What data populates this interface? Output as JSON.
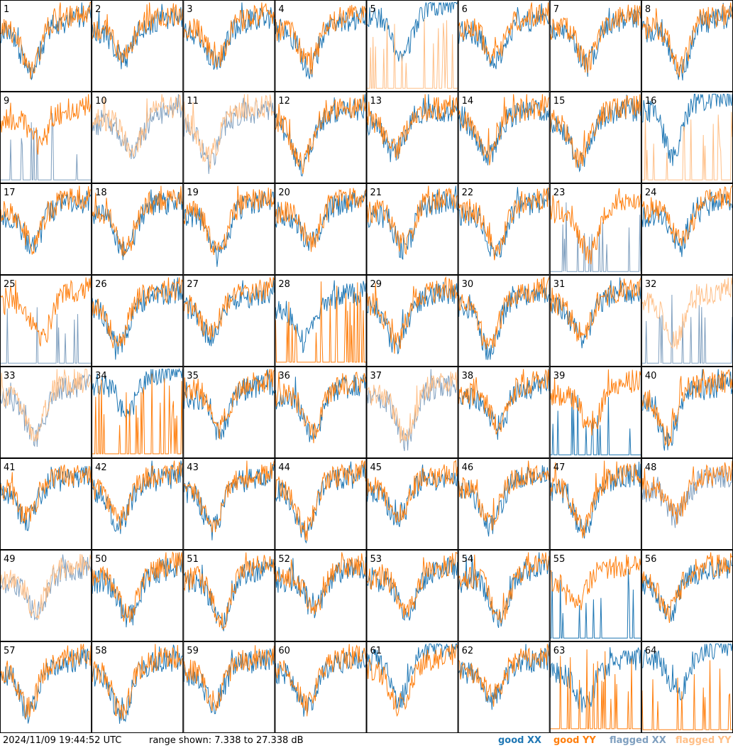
{
  "chart_data": {
    "type": "line",
    "description_grid": {
      "rows": 8,
      "cols": 8
    },
    "panel_labels": [
      "1",
      "2",
      "3",
      "4",
      "5",
      "6",
      "7",
      "8",
      "9",
      "10",
      "11",
      "12",
      "13",
      "14",
      "15",
      "16",
      "17",
      "18",
      "19",
      "20",
      "21",
      "22",
      "23",
      "24",
      "25",
      "26",
      "27",
      "28",
      "29",
      "30",
      "31",
      "32",
      "33",
      "34",
      "35",
      "36",
      "37",
      "38",
      "39",
      "40",
      "41",
      "42",
      "43",
      "44",
      "45",
      "46",
      "47",
      "48",
      "49",
      "50",
      "51",
      "52",
      "53",
      "54",
      "55",
      "56",
      "57",
      "58",
      "59",
      "60",
      "61",
      "62",
      "63",
      "64"
    ],
    "y_range_db": [
      7.338,
      27.338
    ],
    "series_names": [
      "good XX",
      "good YY",
      "flagged XX",
      "flagged YY"
    ],
    "panel_status": {
      "xx_flagged": [
        9,
        10,
        11,
        23,
        25,
        32,
        33,
        37,
        48,
        49
      ],
      "yy_flagged": [
        5,
        10,
        11,
        16,
        32,
        33,
        37,
        49
      ],
      "xx_dropout": [
        9,
        23,
        25,
        32,
        39,
        55
      ],
      "yy_dropout": [
        5,
        16,
        28,
        34,
        63,
        64
      ],
      "xx_low": [
        5,
        16,
        34,
        61,
        64
      ],
      "yy_high": [
        28,
        34,
        63
      ]
    }
  },
  "footer": {
    "timestamp": "2024/11/09 19:44:52 UTC",
    "range_text": "range shown: 7.338 to 27.338 dB"
  },
  "legend": {
    "good_xx": "good XX",
    "good_yy": "good YY",
    "flagged_xx": "flagged XX",
    "flagged_yy": "flagged YY"
  },
  "colors": {
    "good_xx": "#1f77b4",
    "good_yy": "#ff7f0e",
    "flagged_xx": "#7f9fbf",
    "flagged_yy": "#ffbf87"
  }
}
